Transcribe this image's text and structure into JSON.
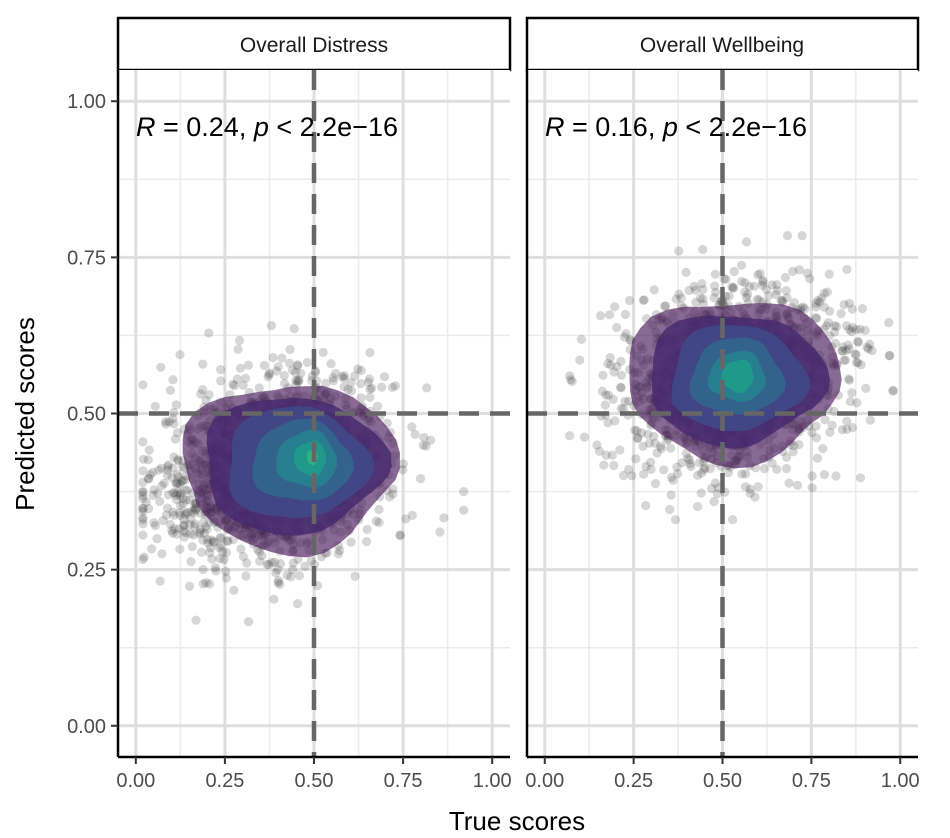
{
  "chart_data": {
    "type": "scatter",
    "xlabel": "True scores",
    "ylabel": "Predicted scores",
    "xlim": [
      -0.05,
      1.05
    ],
    "ylim": [
      -0.05,
      1.05
    ],
    "x_ticks": [
      "0.00",
      "0.25",
      "0.50",
      "0.75",
      "1.00"
    ],
    "y_ticks": [
      "0.00",
      "0.25",
      "0.50",
      "0.75",
      "1.00"
    ],
    "reference_lines": {
      "x": 0.5,
      "y": 0.5,
      "style": "dashed"
    },
    "grid": true,
    "colors": {
      "points": "#333333",
      "density": [
        "#4a1a5c",
        "#472a6e",
        "#3f4a8a",
        "#31688e",
        "#26828e",
        "#1f9e89",
        "#35b779",
        "#6ece58",
        "#b5de2b"
      ],
      "refline": "#666666"
    },
    "panels": [
      {
        "strip": "Overall Distress",
        "annotation": {
          "R": "R",
          "eq1": " = 0.24, ",
          "p": "p",
          "eq2": " < 2.2e−16"
        },
        "points": {
          "n": 1500,
          "center_x": 0.38,
          "center_y": 0.41,
          "sd_x": 0.17,
          "sd_y": 0.075,
          "r": 0.24,
          "x_range": [
            0.02,
            0.92
          ],
          "y_range": [
            0.13,
            0.65
          ]
        },
        "density_peak": [
          0.49,
          0.43
        ],
        "density_levels": [
          {
            "cx": 0.43,
            "cy": 0.415,
            "rx": 0.3,
            "ry": 0.135
          },
          {
            "cx": 0.44,
            "cy": 0.418,
            "rx": 0.255,
            "ry": 0.11
          },
          {
            "cx": 0.45,
            "cy": 0.42,
            "rx": 0.2,
            "ry": 0.09
          },
          {
            "cx": 0.465,
            "cy": 0.423,
            "rx": 0.14,
            "ry": 0.065
          },
          {
            "cx": 0.48,
            "cy": 0.426,
            "rx": 0.085,
            "ry": 0.045
          },
          {
            "cx": 0.49,
            "cy": 0.428,
            "rx": 0.045,
            "ry": 0.028
          },
          {
            "cx": 0.495,
            "cy": 0.43,
            "rx": 0.015,
            "ry": 0.012
          }
        ]
      },
      {
        "strip": "Overall Wellbeing",
        "annotation": {
          "R": "R",
          "eq1": " = 0.16, ",
          "p": "p",
          "eq2": " < 2.2e−16"
        },
        "points": {
          "n": 1500,
          "center_x": 0.53,
          "center_y": 0.555,
          "sd_x": 0.16,
          "sd_y": 0.075,
          "r": 0.16,
          "x_range": [
            0.07,
            0.98
          ],
          "y_range": [
            0.33,
            0.84
          ]
        },
        "density_peak": [
          0.54,
          0.56
        ],
        "density_levels": [
          {
            "cx": 0.53,
            "cy": 0.555,
            "rx": 0.3,
            "ry": 0.13
          },
          {
            "cx": 0.535,
            "cy": 0.556,
            "rx": 0.25,
            "ry": 0.105
          },
          {
            "cx": 0.54,
            "cy": 0.557,
            "rx": 0.19,
            "ry": 0.085
          },
          {
            "cx": 0.54,
            "cy": 0.558,
            "rx": 0.13,
            "ry": 0.062
          },
          {
            "cx": 0.542,
            "cy": 0.559,
            "rx": 0.08,
            "ry": 0.04
          },
          {
            "cx": 0.543,
            "cy": 0.56,
            "rx": 0.045,
            "ry": 0.026
          }
        ]
      }
    ]
  }
}
